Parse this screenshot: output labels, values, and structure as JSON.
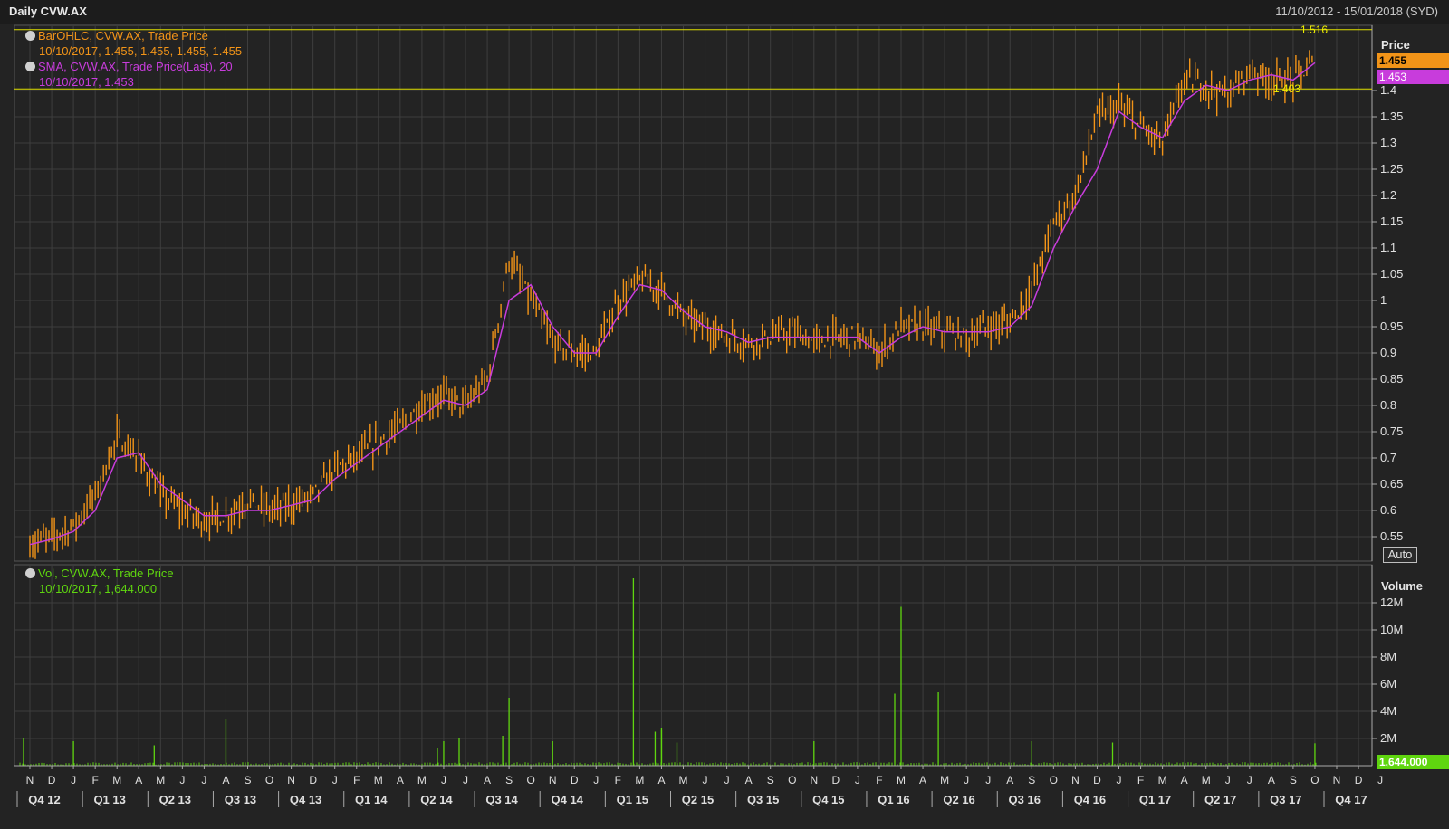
{
  "header": {
    "title": "Daily CVW.AX",
    "date_range": "11/10/2012 - 15/01/2018 (SYD)"
  },
  "legend": {
    "bar_series": "BarOHLC, CVW.AX, Trade Price",
    "bar_values": "10/10/2017, 1.455, 1.455, 1.455, 1.455",
    "sma_series": "SMA, CVW.AX, Trade Price(Last),  20",
    "sma_values": "10/10/2017, 1.453",
    "vol_series": "Vol, CVW.AX, Trade Price",
    "vol_values": "10/10/2017, 1,644.000"
  },
  "price_axis": {
    "title": "Price",
    "ticks": [
      "1.4",
      "1.35",
      "1.3",
      "1.25",
      "1.2",
      "1.15",
      "1.1",
      "1.05",
      "1",
      "0.95",
      "0.9",
      "0.85",
      "0.8",
      "0.75",
      "0.7",
      "0.65",
      "0.6",
      "0.55"
    ],
    "last_price_tag": "1.455",
    "sma_tag": "1.453",
    "auto_label": "Auto"
  },
  "volume_axis": {
    "title": "Volume",
    "ticks": [
      "12M",
      "10M",
      "8M",
      "6M",
      "4M",
      "2M"
    ],
    "last_volume_tag": "1,644.000"
  },
  "horizontal_lines": {
    "high_label": "1.516",
    "low_label": "1.403"
  },
  "time_axis": {
    "months": [
      "N",
      "D",
      "J",
      "F",
      "M",
      "A",
      "M",
      "J",
      "J",
      "A",
      "S",
      "O",
      "N",
      "D",
      "J",
      "F",
      "M",
      "A",
      "M",
      "J",
      "J",
      "A",
      "S",
      "O",
      "N",
      "D",
      "J",
      "F",
      "M",
      "A",
      "M",
      "J",
      "J",
      "A",
      "S",
      "O",
      "N",
      "D",
      "J",
      "F",
      "M",
      "A",
      "M",
      "J",
      "J",
      "A",
      "S",
      "O",
      "N",
      "D",
      "J",
      "F",
      "M",
      "A",
      "M",
      "J",
      "J",
      "A",
      "S",
      "O",
      "N",
      "D",
      "J"
    ],
    "quarters": [
      "Q4 12",
      "Q1 13",
      "Q2 13",
      "Q3 13",
      "Q4 13",
      "Q1 14",
      "Q2 14",
      "Q3 14",
      "Q4 14",
      "Q1 15",
      "Q2 15",
      "Q3 15",
      "Q4 15",
      "Q1 16",
      "Q2 16",
      "Q3 16",
      "Q4 16",
      "Q1 17",
      "Q2 17",
      "Q3 17",
      "Q4 17"
    ]
  },
  "colors": {
    "bars": "#f29418",
    "sma": "#c83cdc",
    "volume": "#5fd60f",
    "hline": "#e0e000",
    "grid": "#3e3e3e"
  },
  "chart_data": [
    {
      "type": "line",
      "title": "Daily CVW.AX",
      "ylabel": "Price",
      "ylim": [
        0.52,
        1.52
      ],
      "x_range": [
        "11/10/2012",
        "15/01/2018"
      ],
      "series": [
        {
          "name": "BarOHLC, CVW.AX, Trade Price",
          "style": "ohlc-close",
          "x": [
            "2012-11",
            "2012-12",
            "2013-01",
            "2013-02",
            "2013-03",
            "2013-04",
            "2013-05",
            "2013-06",
            "2013-07",
            "2013-08",
            "2013-09",
            "2013-10",
            "2013-11",
            "2013-12",
            "2014-01",
            "2014-02",
            "2014-03",
            "2014-04",
            "2014-05",
            "2014-06",
            "2014-07",
            "2014-08",
            "2014-09",
            "2014-10",
            "2014-11",
            "2014-12",
            "2015-01",
            "2015-02",
            "2015-03",
            "2015-04",
            "2015-05",
            "2015-06",
            "2015-07",
            "2015-08",
            "2015-09",
            "2015-10",
            "2015-11",
            "2015-12",
            "2016-01",
            "2016-02",
            "2016-03",
            "2016-04",
            "2016-05",
            "2016-06",
            "2016-07",
            "2016-08",
            "2016-09",
            "2016-10",
            "2016-11",
            "2016-12",
            "2017-01",
            "2017-02",
            "2017-03",
            "2017-04",
            "2017-05",
            "2017-06",
            "2017-07",
            "2017-08",
            "2017-09",
            "2017-10"
          ],
          "values": [
            0.535,
            0.55,
            0.57,
            0.63,
            0.74,
            0.7,
            0.63,
            0.6,
            0.58,
            0.59,
            0.62,
            0.6,
            0.61,
            0.63,
            0.68,
            0.7,
            0.73,
            0.76,
            0.8,
            0.82,
            0.8,
            0.85,
            1.08,
            1.0,
            0.92,
            0.9,
            0.9,
            1.0,
            1.04,
            1.02,
            0.97,
            0.95,
            0.93,
            0.92,
            0.93,
            0.94,
            0.92,
            0.93,
            0.93,
            0.9,
            0.95,
            0.95,
            0.94,
            0.93,
            0.95,
            0.96,
            1.02,
            1.15,
            1.2,
            1.35,
            1.37,
            1.33,
            1.3,
            1.42,
            1.41,
            1.39,
            1.44,
            1.42,
            1.42,
            1.455
          ]
        },
        {
          "name": "SMA, CVW.AX, Trade Price(Last),  20",
          "style": "line",
          "x": [
            "2012-11",
            "2012-12",
            "2013-01",
            "2013-02",
            "2013-03",
            "2013-04",
            "2013-05",
            "2013-06",
            "2013-07",
            "2013-08",
            "2013-09",
            "2013-10",
            "2013-11",
            "2013-12",
            "2014-01",
            "2014-02",
            "2014-03",
            "2014-04",
            "2014-05",
            "2014-06",
            "2014-07",
            "2014-08",
            "2014-09",
            "2014-10",
            "2014-11",
            "2014-12",
            "2015-01",
            "2015-02",
            "2015-03",
            "2015-04",
            "2015-05",
            "2015-06",
            "2015-07",
            "2015-08",
            "2015-09",
            "2015-10",
            "2015-11",
            "2015-12",
            "2016-01",
            "2016-02",
            "2016-03",
            "2016-04",
            "2016-05",
            "2016-06",
            "2016-07",
            "2016-08",
            "2016-09",
            "2016-10",
            "2016-11",
            "2016-12",
            "2017-01",
            "2017-02",
            "2017-03",
            "2017-04",
            "2017-05",
            "2017-06",
            "2017-07",
            "2017-08",
            "2017-09",
            "2017-10"
          ],
          "values": [
            0.535,
            0.545,
            0.56,
            0.6,
            0.7,
            0.71,
            0.65,
            0.62,
            0.59,
            0.59,
            0.6,
            0.6,
            0.61,
            0.62,
            0.66,
            0.69,
            0.72,
            0.75,
            0.78,
            0.81,
            0.8,
            0.83,
            1.0,
            1.03,
            0.95,
            0.9,
            0.9,
            0.97,
            1.03,
            1.02,
            0.98,
            0.95,
            0.94,
            0.92,
            0.93,
            0.93,
            0.93,
            0.93,
            0.93,
            0.9,
            0.93,
            0.95,
            0.94,
            0.94,
            0.94,
            0.95,
            0.99,
            1.1,
            1.18,
            1.25,
            1.36,
            1.33,
            1.31,
            1.38,
            1.41,
            1.4,
            1.42,
            1.43,
            1.42,
            1.453
          ]
        }
      ],
      "reference_lines": [
        1.516,
        1.403
      ]
    },
    {
      "type": "bar",
      "title": "",
      "ylabel": "Volume",
      "ylim": [
        0,
        13500000
      ],
      "baseline_volume": 200000,
      "spikes": [
        {
          "x": "2012-11",
          "value": 2000000
        },
        {
          "x": "2013-01",
          "value": 1800000
        },
        {
          "x": "2013-05",
          "value": 1500000
        },
        {
          "x": "2013-08",
          "value": 3400000
        },
        {
          "x": "2014-06",
          "value": 1300000
        },
        {
          "x": "2014-06",
          "value": 1800000
        },
        {
          "x": "2014-07",
          "value": 2000000
        },
        {
          "x": "2014-09",
          "value": 5000000
        },
        {
          "x": "2014-09",
          "value": 2200000
        },
        {
          "x": "2014-11",
          "value": 1800000
        },
        {
          "x": "2015-03",
          "value": 13800000
        },
        {
          "x": "2015-04",
          "value": 2600000
        },
        {
          "x": "2015-04",
          "value": 2500000
        },
        {
          "x": "2015-04",
          "value": 2800000
        },
        {
          "x": "2015-05",
          "value": 1700000
        },
        {
          "x": "2015-11",
          "value": 1800000
        },
        {
          "x": "2016-03",
          "value": 5300000
        },
        {
          "x": "2016-03",
          "value": 11700000
        },
        {
          "x": "2016-05",
          "value": 5400000
        },
        {
          "x": "2016-09",
          "value": 1800000
        },
        {
          "x": "2017-01",
          "value": 1700000
        },
        {
          "x": "2017-10",
          "value": 1644000
        }
      ]
    }
  ]
}
